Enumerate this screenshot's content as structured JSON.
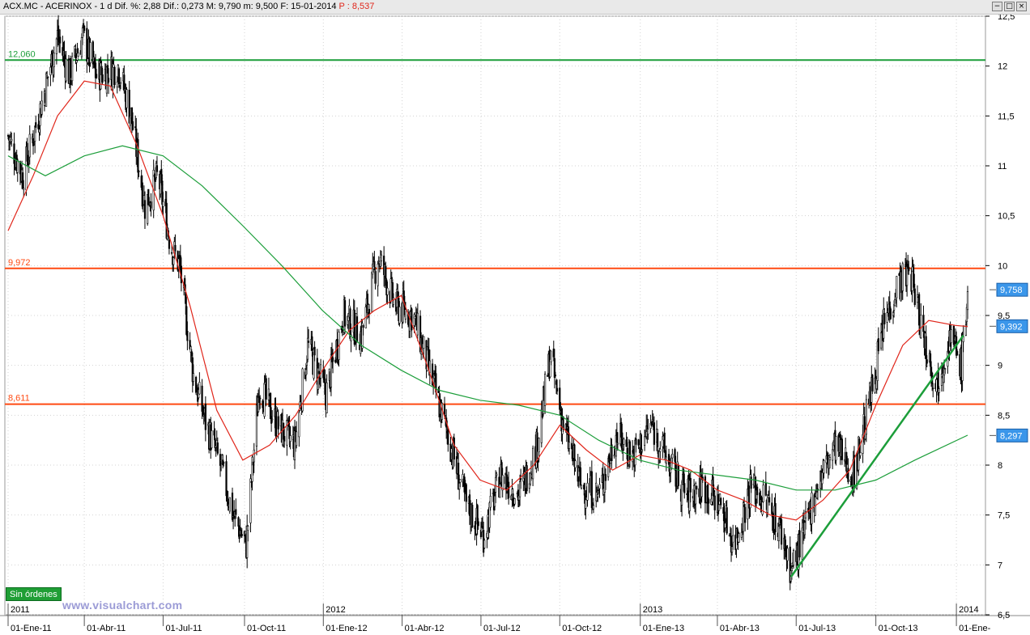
{
  "header": {
    "info": "ACX.MC - ACERINOX - 1 d  Dif. %: 2,88  Dif.: 0,273  M: 9,790  m: 9,500  F: 15-01-2014",
    "price_label": "P : 8,537",
    "win_buttons": [
      "−",
      "□",
      "×"
    ]
  },
  "status": {
    "label": "Sin órdenes"
  },
  "watermark": {
    "text": "www.visualchart.com"
  },
  "colors": {
    "candles": "#000000",
    "ma_short": "#e0261b",
    "ma_long": "#1c9e3a",
    "level_green": "#1c9e3a",
    "level_orange": "#ff4a12",
    "price_tag": "#3a96ea",
    "grid": "#d3d3d3"
  },
  "chart_data": {
    "type": "line",
    "subtype": "candlestick",
    "ylim": [
      6.5,
      12.5
    ],
    "yticks": [
      "6,5",
      "7",
      "7,5",
      "8",
      "8,5",
      "9",
      "9,5",
      "10",
      "10,5",
      "11",
      "11,5",
      "12",
      "12,5"
    ],
    "x_date_range": [
      "2011-01-03",
      "2014-01-15"
    ],
    "xticks": [
      {
        "date": "2011-01-03",
        "label": "01-Ene-11"
      },
      {
        "date": "2011-04-01",
        "label": "01-Abr-11"
      },
      {
        "date": "2011-07-01",
        "label": "01-Jul-11"
      },
      {
        "date": "2011-10-03",
        "label": "01-Oct-11"
      },
      {
        "date": "2012-01-02",
        "label": "01-Ene-12"
      },
      {
        "date": "2012-04-02",
        "label": "01-Abr-12"
      },
      {
        "date": "2012-07-02",
        "label": "01-Jul-12"
      },
      {
        "date": "2012-10-01",
        "label": "01-Oct-12"
      },
      {
        "date": "2013-01-02",
        "label": "01-Ene-13"
      },
      {
        "date": "2013-04-01",
        "label": "01-Abr-13"
      },
      {
        "date": "2013-07-01",
        "label": "01-Jul-13"
      },
      {
        "date": "2013-10-01",
        "label": "01-Oct-13"
      },
      {
        "date": "2014-01-02",
        "label": "01-Ene-"
      }
    ],
    "year_labels": [
      {
        "date": "2011-01-03",
        "label": "2011"
      },
      {
        "date": "2012-01-02",
        "label": "2012"
      },
      {
        "date": "2013-01-02",
        "label": "2013"
      },
      {
        "date": "2014-01-02",
        "label": "2014"
      }
    ],
    "price_path": [
      [
        "2011-01-03",
        11.3
      ],
      [
        "2011-01-20",
        10.9
      ],
      [
        "2011-02-10",
        11.6
      ],
      [
        "2011-03-01",
        12.3
      ],
      [
        "2011-03-15",
        11.9
      ],
      [
        "2011-03-30",
        12.3
      ],
      [
        "2011-04-15",
        11.9
      ],
      [
        "2011-05-10",
        12.0
      ],
      [
        "2011-05-25",
        11.5
      ],
      [
        "2011-06-10",
        10.6
      ],
      [
        "2011-06-25",
        10.9
      ],
      [
        "2011-07-10",
        10.2
      ],
      [
        "2011-07-20",
        10.0
      ],
      [
        "2011-08-05",
        8.9
      ],
      [
        "2011-08-20",
        8.4
      ],
      [
        "2011-09-05",
        8.0
      ],
      [
        "2011-09-20",
        7.5
      ],
      [
        "2011-10-05",
        7.2
      ],
      [
        "2011-10-20",
        8.8
      ],
      [
        "2011-11-10",
        8.4
      ],
      [
        "2011-11-30",
        8.2
      ],
      [
        "2011-12-15",
        9.2
      ],
      [
        "2012-01-05",
        8.7
      ],
      [
        "2012-01-25",
        9.5
      ],
      [
        "2012-02-15",
        9.3
      ],
      [
        "2012-03-05",
        10.1
      ],
      [
        "2012-03-25",
        9.6
      ],
      [
        "2012-04-15",
        9.5
      ],
      [
        "2012-05-05",
        8.9
      ],
      [
        "2012-05-25",
        8.3
      ],
      [
        "2012-06-15",
        7.6
      ],
      [
        "2012-07-05",
        7.3
      ],
      [
        "2012-07-25",
        7.9
      ],
      [
        "2012-08-15",
        7.7
      ],
      [
        "2012-09-05",
        8.2
      ],
      [
        "2012-09-20",
        9.1
      ],
      [
        "2012-10-05",
        8.4
      ],
      [
        "2012-10-25",
        7.8
      ],
      [
        "2012-11-15",
        7.7
      ],
      [
        "2012-12-05",
        8.3
      ],
      [
        "2012-12-25",
        8.1
      ],
      [
        "2013-01-15",
        8.4
      ],
      [
        "2013-02-05",
        8.0
      ],
      [
        "2013-02-25",
        7.7
      ],
      [
        "2013-03-15",
        7.8
      ],
      [
        "2013-04-05",
        7.6
      ],
      [
        "2013-04-20",
        7.2
      ],
      [
        "2013-05-10",
        7.8
      ],
      [
        "2013-05-30",
        7.6
      ],
      [
        "2013-06-15",
        7.3
      ],
      [
        "2013-06-25",
        6.95
      ],
      [
        "2013-07-10",
        7.3
      ],
      [
        "2013-07-25",
        7.8
      ],
      [
        "2013-08-15",
        8.2
      ],
      [
        "2013-09-05",
        7.9
      ],
      [
        "2013-09-25",
        8.7
      ],
      [
        "2013-10-10",
        9.4
      ],
      [
        "2013-10-25",
        9.8
      ],
      [
        "2013-11-10",
        9.95
      ],
      [
        "2013-11-25",
        9.3
      ],
      [
        "2013-12-10",
        8.8
      ],
      [
        "2013-12-25",
        9.3
      ],
      [
        "2014-01-08",
        9.0
      ],
      [
        "2014-01-15",
        9.75
      ]
    ],
    "series": [
      {
        "name": "",
        "role": "short moving average",
        "color": "#e0261b",
        "points": [
          [
            "2011-01-03",
            10.35
          ],
          [
            "2011-02-01",
            10.9
          ],
          [
            "2011-03-01",
            11.5
          ],
          [
            "2011-04-01",
            11.85
          ],
          [
            "2011-05-01",
            11.8
          ],
          [
            "2011-06-01",
            11.2
          ],
          [
            "2011-07-01",
            10.5
          ],
          [
            "2011-08-01",
            9.6
          ],
          [
            "2011-09-01",
            8.55
          ],
          [
            "2011-10-01",
            8.05
          ],
          [
            "2011-11-01",
            8.2
          ],
          [
            "2011-12-01",
            8.5
          ],
          [
            "2012-01-01",
            8.95
          ],
          [
            "2012-02-01",
            9.35
          ],
          [
            "2012-03-01",
            9.55
          ],
          [
            "2012-04-01",
            9.7
          ],
          [
            "2012-05-01",
            9.0
          ],
          [
            "2012-06-01",
            8.2
          ],
          [
            "2012-07-01",
            7.85
          ],
          [
            "2012-08-01",
            7.75
          ],
          [
            "2012-09-01",
            8.0
          ],
          [
            "2012-10-01",
            8.4
          ],
          [
            "2012-11-01",
            8.15
          ],
          [
            "2012-12-01",
            7.95
          ],
          [
            "2013-01-01",
            8.1
          ],
          [
            "2013-02-01",
            8.05
          ],
          [
            "2013-03-01",
            7.95
          ],
          [
            "2013-04-01",
            7.75
          ],
          [
            "2013-05-01",
            7.65
          ],
          [
            "2013-06-01",
            7.5
          ],
          [
            "2013-07-01",
            7.45
          ],
          [
            "2013-08-01",
            7.65
          ],
          [
            "2013-09-01",
            7.95
          ],
          [
            "2013-10-01",
            8.6
          ],
          [
            "2013-11-01",
            9.2
          ],
          [
            "2013-12-01",
            9.45
          ],
          [
            "2014-01-01",
            9.4
          ],
          [
            "2014-01-15",
            9.39
          ]
        ]
      },
      {
        "name": "",
        "role": "long moving average",
        "color": "#1c9e3a",
        "points": [
          [
            "2011-01-03",
            11.1
          ],
          [
            "2011-02-15",
            10.9
          ],
          [
            "2011-04-01",
            11.1
          ],
          [
            "2011-05-15",
            11.2
          ],
          [
            "2011-07-01",
            11.1
          ],
          [
            "2011-08-15",
            10.8
          ],
          [
            "2011-10-01",
            10.4
          ],
          [
            "2011-11-15",
            10.0
          ],
          [
            "2012-01-01",
            9.55
          ],
          [
            "2012-02-15",
            9.2
          ],
          [
            "2012-04-01",
            8.95
          ],
          [
            "2012-05-15",
            8.75
          ],
          [
            "2012-07-01",
            8.65
          ],
          [
            "2012-08-15",
            8.6
          ],
          [
            "2012-10-01",
            8.5
          ],
          [
            "2012-11-15",
            8.25
          ],
          [
            "2013-01-01",
            8.05
          ],
          [
            "2013-02-15",
            7.95
          ],
          [
            "2013-04-01",
            7.9
          ],
          [
            "2013-05-15",
            7.85
          ],
          [
            "2013-07-01",
            7.75
          ],
          [
            "2013-08-15",
            7.75
          ],
          [
            "2013-10-01",
            7.85
          ],
          [
            "2013-11-15",
            8.05
          ],
          [
            "2014-01-15",
            8.3
          ]
        ]
      }
    ],
    "trendline": {
      "color": "#1c9e3a",
      "from": [
        "2013-06-25",
        6.88
      ],
      "to": [
        "2014-01-10",
        9.3
      ]
    },
    "levels": [
      {
        "value": 12.06,
        "label": "12,060",
        "color": "#1c9e3a"
      },
      {
        "value": 9.972,
        "label": "9,972",
        "color": "#ff4a12"
      },
      {
        "value": 8.611,
        "label": "8,611",
        "color": "#ff4a12"
      }
    ],
    "price_tags": [
      {
        "value": 9.758,
        "label": "9,758"
      },
      {
        "value": 9.392,
        "label": "9,392"
      },
      {
        "value": 8.297,
        "label": "8,297"
      }
    ],
    "grid": true
  }
}
